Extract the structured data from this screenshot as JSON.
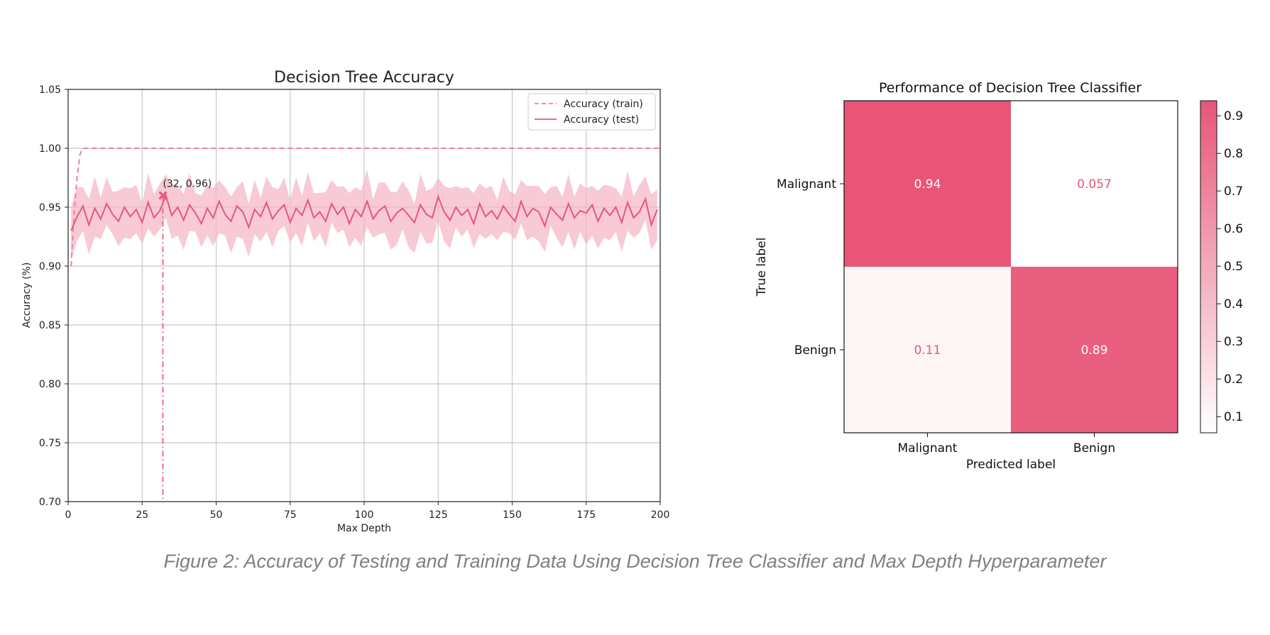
{
  "caption": "Figure 2: Accuracy of Testing and Training Data Using Decision Tree Classifier and Max Depth Hyperparameter",
  "colors": {
    "train": "#f07fa0",
    "test": "#e8567a",
    "band": "#f4b3c4",
    "cell_high": "#e85577",
    "cell_low": "#ffffff",
    "grid": "#c8c8c8",
    "annotation_line": "#ef5f86"
  },
  "chart_data": [
    {
      "type": "line",
      "title": "Decision Tree Accuracy",
      "xlabel": "Max Depth",
      "ylabel": "Accuracy (%)",
      "xlim": [
        0,
        200
      ],
      "ylim": [
        0.7,
        1.05
      ],
      "xticks": [
        0,
        25,
        50,
        75,
        100,
        125,
        150,
        175,
        200
      ],
      "yticks": [
        0.7,
        0.75,
        0.8,
        0.85,
        0.9,
        0.95,
        1.0,
        1.05
      ],
      "grid": true,
      "legend_position": "top-right",
      "series": [
        {
          "name": "Accuracy (train)",
          "style": "dashed",
          "x": [
            1,
            2,
            3,
            4,
            5,
            200
          ],
          "y": [
            0.9,
            0.945,
            0.975,
            0.995,
            1.0,
            1.0
          ]
        },
        {
          "name": "Accuracy (test)",
          "style": "solid",
          "x": [
            1,
            3,
            5,
            7,
            9,
            11,
            13,
            15,
            17,
            19,
            21,
            23,
            25,
            27,
            29,
            31,
            33,
            35,
            37,
            39,
            41,
            43,
            45,
            47,
            49,
            51,
            53,
            55,
            57,
            59,
            61,
            63,
            65,
            67,
            69,
            71,
            73,
            75,
            77,
            79,
            81,
            83,
            85,
            87,
            89,
            91,
            93,
            95,
            97,
            99,
            101,
            103,
            105,
            107,
            109,
            111,
            113,
            115,
            117,
            119,
            121,
            123,
            125,
            127,
            129,
            131,
            133,
            135,
            137,
            139,
            141,
            143,
            145,
            147,
            149,
            151,
            153,
            155,
            157,
            159,
            161,
            163,
            165,
            167,
            169,
            171,
            173,
            175,
            177,
            179,
            181,
            183,
            185,
            187,
            189,
            191,
            193,
            195,
            197,
            199
          ],
          "y": [
            0.93,
            0.942,
            0.951,
            0.935,
            0.949,
            0.94,
            0.953,
            0.944,
            0.938,
            0.95,
            0.942,
            0.948,
            0.937,
            0.954,
            0.941,
            0.947,
            0.96,
            0.943,
            0.95,
            0.939,
            0.952,
            0.945,
            0.936,
            0.949,
            0.941,
            0.955,
            0.944,
            0.938,
            0.951,
            0.946,
            0.933,
            0.948,
            0.942,
            0.954,
            0.94,
            0.947,
            0.952,
            0.937,
            0.949,
            0.943,
            0.956,
            0.941,
            0.946,
            0.938,
            0.953,
            0.944,
            0.95,
            0.936,
            0.948,
            0.942,
            0.955,
            0.94,
            0.947,
            0.951,
            0.938,
            0.945,
            0.949,
            0.943,
            0.937,
            0.952,
            0.944,
            0.941,
            0.959,
            0.946,
            0.939,
            0.95,
            0.943,
            0.948,
            0.936,
            0.953,
            0.942,
            0.947,
            0.94,
            0.951,
            0.944,
            0.938,
            0.955,
            0.942,
            0.949,
            0.946,
            0.934,
            0.95,
            0.944,
            0.939,
            0.953,
            0.941,
            0.947,
            0.945,
            0.952,
            0.938,
            0.949,
            0.943,
            0.95,
            0.937,
            0.954,
            0.941,
            0.946,
            0.957,
            0.935,
            0.948
          ]
        }
      ],
      "band": {
        "lower_offset": [
          -0.025,
          -0.022,
          -0.018,
          -0.026,
          -0.02,
          -0.017,
          -0.024,
          -0.021,
          -0.016,
          -0.027,
          -0.019,
          -0.023,
          -0.018,
          -0.025,
          -0.021,
          -0.016,
          -0.026,
          -0.02,
          -0.024,
          -0.017,
          -0.022,
          -0.025,
          -0.019,
          -0.023,
          -0.018,
          -0.027,
          -0.021,
          -0.016,
          -0.024,
          -0.02
        ],
        "upper_offset": [
          0.02,
          0.025,
          0.016,
          0.022,
          0.027,
          0.018,
          0.023,
          0.019,
          0.026,
          0.017,
          0.024,
          0.021,
          0.016,
          0.025,
          0.02,
          0.023,
          0.018,
          0.026,
          0.019,
          0.022,
          0.027,
          0.017,
          0.024,
          0.02,
          0.025,
          0.018,
          0.023,
          0.021,
          0.016,
          0.026
        ]
      },
      "annotation": {
        "x": 32,
        "y": 0.96,
        "label": "(32, 0.96)"
      }
    },
    {
      "type": "heatmap",
      "title": "Performance of Decision Tree Classifier",
      "xlabel": "Predicted label",
      "ylabel": "True label",
      "x_categories": [
        "Malignant",
        "Benign"
      ],
      "y_categories": [
        "Malignant",
        "Benign"
      ],
      "values": [
        [
          0.94,
          0.057
        ],
        [
          0.11,
          0.89
        ]
      ],
      "value_labels": [
        [
          "0.94",
          "0.057"
        ],
        [
          "0.11",
          "0.89"
        ]
      ],
      "colorbar": {
        "range": [
          0.057,
          0.94
        ],
        "ticks": [
          0.1,
          0.2,
          0.3,
          0.4,
          0.5,
          0.6,
          0.7,
          0.8,
          0.9
        ]
      }
    }
  ]
}
